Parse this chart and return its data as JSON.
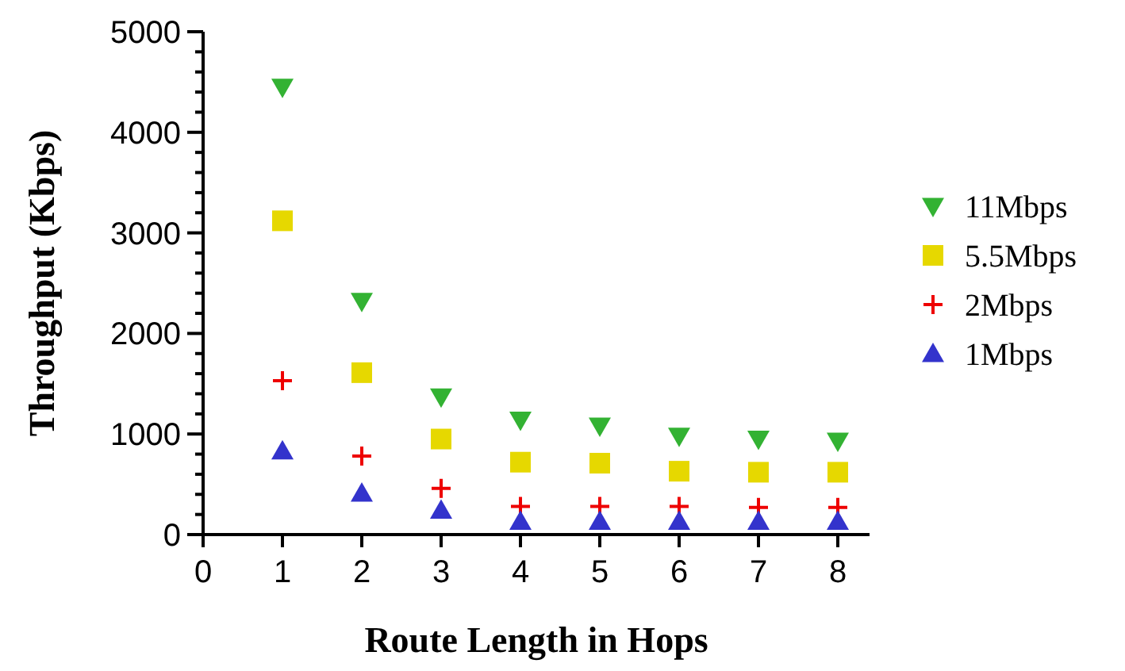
{
  "chart_data": {
    "type": "scatter",
    "xlabel": "Route Length in Hops",
    "ylabel": "Throughput (Kbps)",
    "x": [
      1,
      2,
      3,
      4,
      5,
      6,
      7,
      8
    ],
    "xlim": [
      0,
      8.4
    ],
    "xticks": [
      0,
      1,
      2,
      3,
      4,
      5,
      6,
      7,
      8
    ],
    "ylim": [
      0,
      5000
    ],
    "yticks": [
      0,
      {
        "value": 200,
        "label": null
      },
      {
        "value": 400,
        "label": null
      },
      {
        "value": 600,
        "label": null
      },
      {
        "value": 800,
        "label": null
      },
      1000,
      {
        "value": 1200,
        "label": null
      },
      {
        "value": 1400,
        "label": null
      },
      {
        "value": 1600,
        "label": null
      },
      {
        "value": 1800,
        "label": null
      },
      2000,
      {
        "value": 2200,
        "label": null
      },
      {
        "value": 2400,
        "label": null
      },
      {
        "value": 2600,
        "label": null
      },
      {
        "value": 2800,
        "label": null
      },
      3000,
      {
        "value": 3200,
        "label": null
      },
      {
        "value": 3400,
        "label": null
      },
      {
        "value": 3600,
        "label": null
      },
      {
        "value": 3800,
        "label": null
      },
      4000,
      {
        "value": 4200,
        "label": null
      },
      {
        "value": 4400,
        "label": null
      },
      {
        "value": 4600,
        "label": null
      },
      {
        "value": 4800,
        "label": null
      },
      5000
    ],
    "legend": "right",
    "grid": false,
    "series": [
      {
        "name": "11Mbps",
        "color": "#33b233",
        "marker": "triangle-down",
        "values": [
          4450,
          2320,
          1370,
          1140,
          1080,
          980,
          950,
          930
        ]
      },
      {
        "name": "5.5Mbps",
        "color": "#e6d800",
        "marker": "square",
        "values": [
          3120,
          1610,
          950,
          720,
          710,
          630,
          620,
          620
        ]
      },
      {
        "name": "2Mbps",
        "color": "#ee0000",
        "marker": "cross",
        "values": [
          1530,
          780,
          460,
          280,
          280,
          280,
          270,
          270
        ]
      },
      {
        "name": "1Mbps",
        "color": "#3333cc",
        "marker": "triangle",
        "values": [
          830,
          410,
          240,
          130,
          130,
          130,
          130,
          130
        ]
      }
    ]
  }
}
